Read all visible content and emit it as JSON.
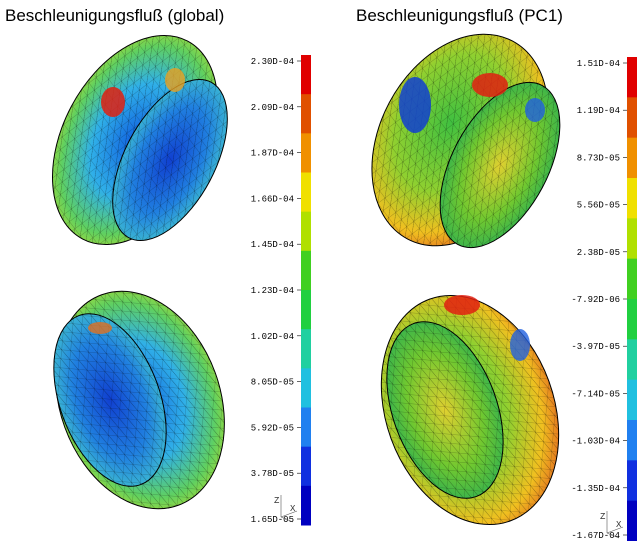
{
  "panels": [
    {
      "title": "Beschleunigungsfluß (global)",
      "colorbar": {
        "labels": [
          "2.30D-04",
          "2.09D-04",
          "1.87D-04",
          "1.66D-04",
          "1.45D-04",
          "1.23D-04",
          "1.02D-04",
          "8.05D-05",
          "5.92D-05",
          "3.78D-05",
          "1.65D-05"
        ]
      },
      "axes": {
        "z": "Z",
        "x": "X"
      }
    },
    {
      "title": "Beschleunigungsfluß (PC1)",
      "colorbar": {
        "labels": [
          "1.51D-04",
          "1.19D-04",
          "8.73D-05",
          "5.56D-05",
          "2.38D-05",
          "-7.92D-06",
          "-3.97D-05",
          "-7.14D-05",
          "-1.03D-04",
          "-1.35D-04",
          "-1.67D-04"
        ]
      },
      "axes": {
        "z": "Z",
        "x": "X"
      }
    }
  ]
}
